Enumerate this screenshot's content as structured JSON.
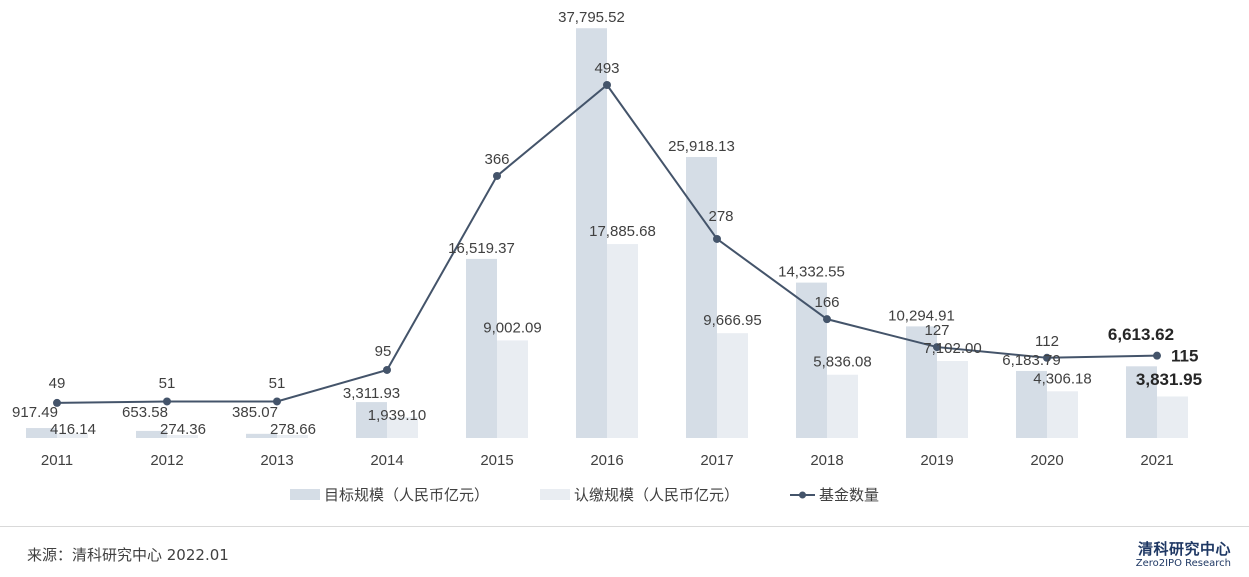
{
  "chart_data": {
    "type": "bar",
    "categories": [
      "2011",
      "2012",
      "2013",
      "2014",
      "2015",
      "2016",
      "2017",
      "2018",
      "2019",
      "2020",
      "2021"
    ],
    "series": [
      {
        "name": "目标规模（人民币亿元）",
        "type": "bar",
        "color": "#d5dde6",
        "values": [
          917.49,
          653.58,
          385.07,
          3311.93,
          16519.37,
          37795.52,
          25918.13,
          14332.55,
          10294.91,
          6183.79,
          6613.62
        ],
        "labels": [
          "917.49",
          "653.58",
          "385.07",
          "3,311.93",
          "16,519.37",
          "37,795.52",
          "25,918.13",
          "14,332.55",
          "10,294.91",
          "6,183.79",
          "6,613.62"
        ]
      },
      {
        "name": "认缴规模（人民币亿元）",
        "type": "bar",
        "color": "#e9edf2",
        "values": [
          416.14,
          274.36,
          278.66,
          1939.1,
          9002.09,
          17885.68,
          9666.95,
          5836.08,
          7102.0,
          4306.18,
          3831.95
        ],
        "labels": [
          "416.14",
          "274.36",
          "278.66",
          "1,939.10",
          "9,002.09",
          "17,885.68",
          "9,666.95",
          "5,836.08",
          "7,102.00",
          "4,306.18",
          "3,831.95"
        ]
      },
      {
        "name": "基金数量",
        "type": "line",
        "color": "#44546a",
        "values": [
          49,
          51,
          51,
          95,
          366,
          493,
          278,
          166,
          127,
          112,
          115
        ],
        "labels": [
          "49",
          "51",
          "51",
          "95",
          "366",
          "493",
          "278",
          "166",
          "127",
          "112",
          "115"
        ]
      }
    ],
    "ylim_bar": [
      0,
      38000
    ],
    "ylim_line": [
      0,
      500
    ],
    "legend_position": "bottom",
    "grid": false
  },
  "footer": {
    "source": "来源：清科研究中心 2022.01",
    "brand_cn": "清科研究中心",
    "brand_en": "Zero2IPO Research"
  }
}
